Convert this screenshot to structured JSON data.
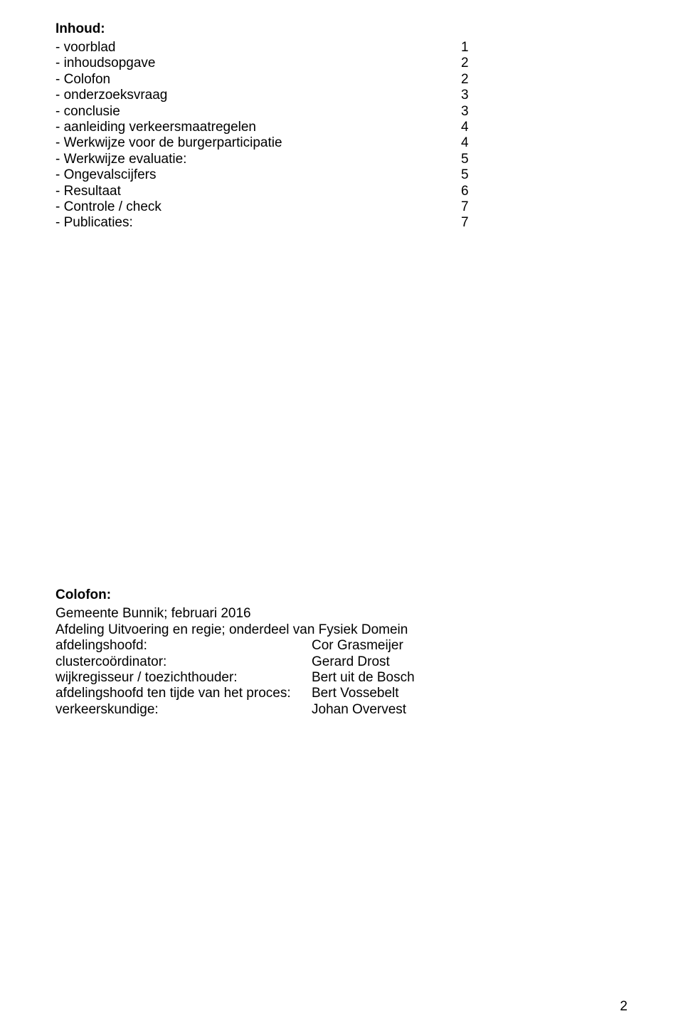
{
  "page": {
    "background_color": "#ffffff",
    "text_color": "#000000",
    "font_family": "Arial, Helvetica, sans-serif",
    "base_fontsize": 19,
    "number": "2"
  },
  "inhoud": {
    "title": "Inhoud:",
    "items": [
      {
        "label": "- voorblad",
        "page": "1"
      },
      {
        "label": "- inhoudsopgave",
        "page": "2"
      },
      {
        "label": "- Colofon",
        "page": "2"
      },
      {
        "label": "- onderzoeksvraag",
        "page": "3"
      },
      {
        "label": "- conclusie",
        "page": "3"
      },
      {
        "label": "- aanleiding verkeersmaatregelen",
        "page": "4"
      },
      {
        "label": "- Werkwijze voor de burgerparticipatie",
        "page": "4"
      },
      {
        "label": "- Werkwijze evaluatie:",
        "page": "5"
      },
      {
        "label": "- Ongevalscijfers",
        "page": "5"
      },
      {
        "label": "- Resultaat",
        "page": "6"
      },
      {
        "label": "- Controle / check",
        "page": "7"
      },
      {
        "label": "- Publicaties:",
        "page": "7"
      }
    ]
  },
  "colofon": {
    "title": "Colofon:",
    "line1": "Gemeente Bunnik; februari 2016",
    "line2": "Afdeling Uitvoering en regie; onderdeel van Fysiek Domein",
    "rows": [
      {
        "label": "afdelingshoofd:",
        "value": "Cor Grasmeijer"
      },
      {
        "label": "clustercoördinator:",
        "value": "Gerard Drost"
      },
      {
        "label": "wijkregisseur / toezichthouder:",
        "value": "Bert uit de Bosch"
      },
      {
        "label": "afdelingshoofd ten tijde van het proces:",
        "value": "Bert Vossebelt"
      },
      {
        "label": "verkeerskundige:",
        "value": "Johan Overvest"
      }
    ]
  }
}
